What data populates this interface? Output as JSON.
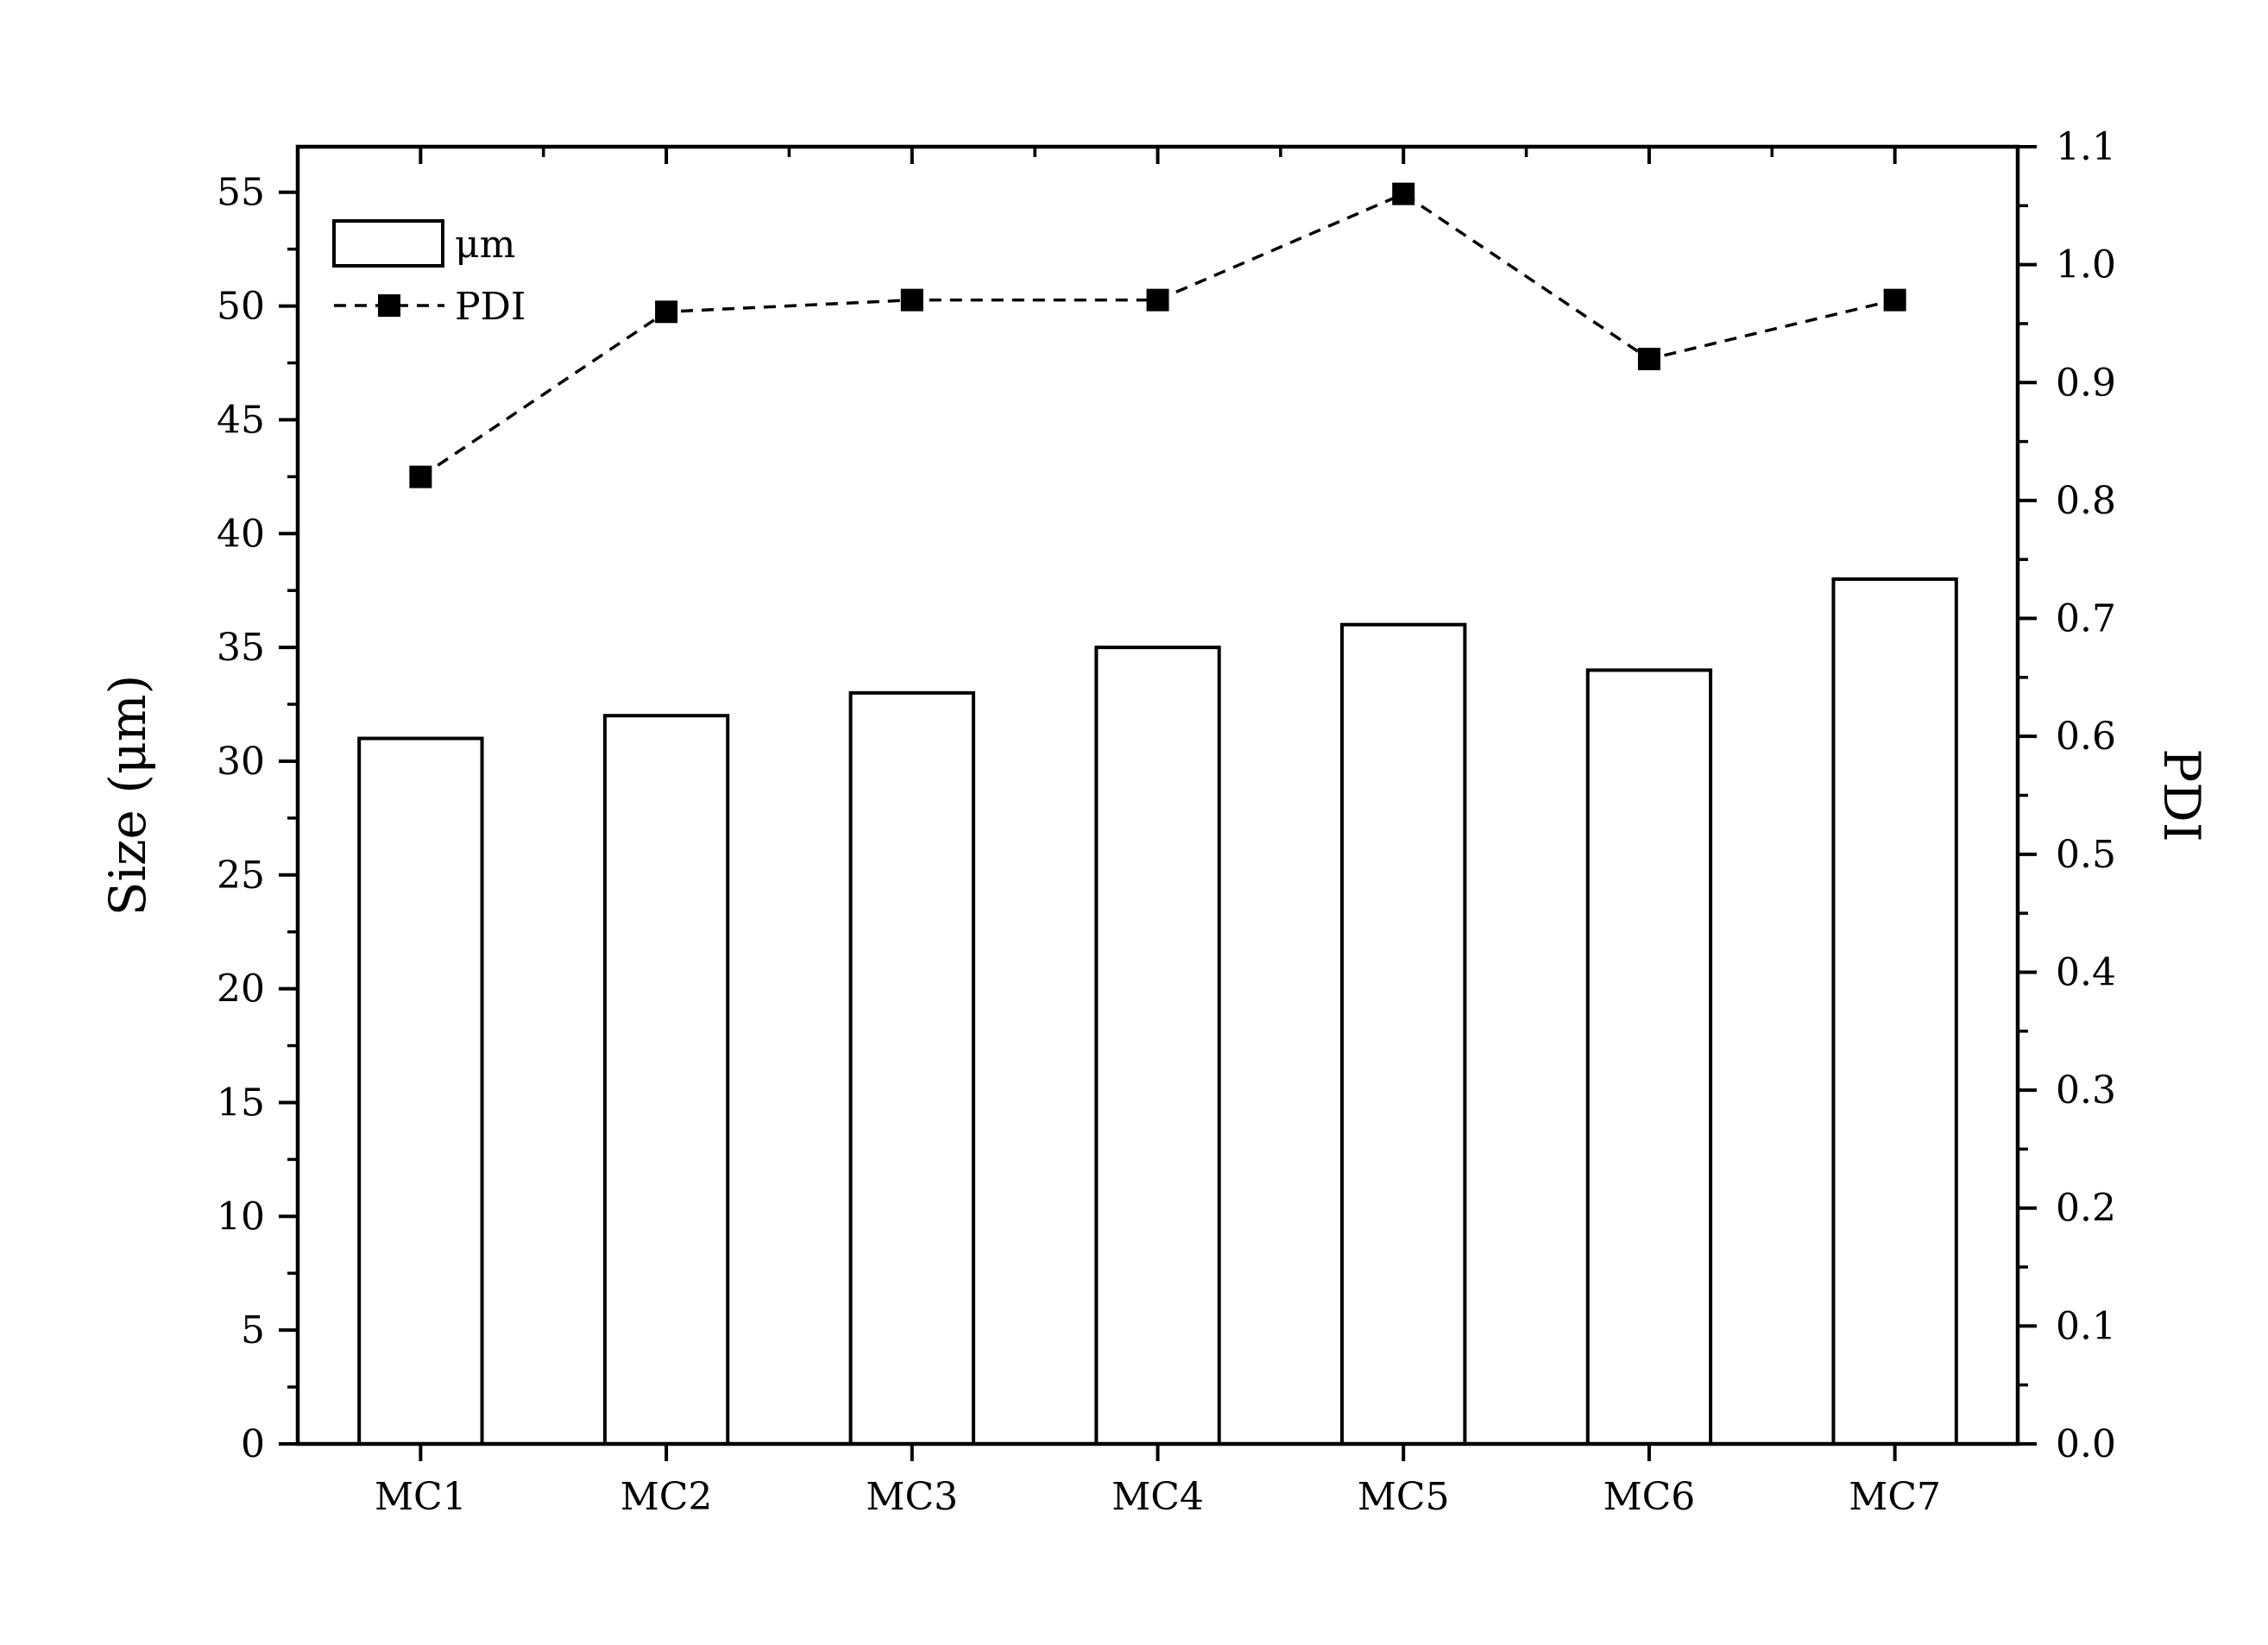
{
  "chart_data": {
    "type": "bar",
    "categories": [
      "MC1",
      "MC2",
      "MC3",
      "MC4",
      "MC5",
      "MC6",
      "MC7"
    ],
    "series": [
      {
        "name": "μm",
        "type": "bar",
        "axis": "left",
        "values": [
          31,
          32,
          33,
          35,
          36,
          34,
          38
        ]
      },
      {
        "name": "PDI",
        "type": "line",
        "axis": "right",
        "line_style": "dashed",
        "marker": "square",
        "values": [
          0.82,
          0.96,
          0.97,
          0.97,
          1.06,
          0.92,
          0.97
        ]
      }
    ],
    "ylabel": "Size (μm)",
    "y2label": "PDI",
    "ylim": [
      0,
      57
    ],
    "y2lim": [
      0,
      1.1
    ],
    "yticks": [
      "0",
      "5",
      "10",
      "15",
      "20",
      "25",
      "30",
      "35",
      "40",
      "45",
      "50",
      "55"
    ],
    "y2ticks": [
      "0.0",
      "0.1",
      "0.2",
      "0.3",
      "0.4",
      "0.5",
      "0.6",
      "0.7",
      "0.8",
      "0.9",
      "1.0",
      "1.1"
    ],
    "legend_position": "top-left",
    "grid": false,
    "colors": {
      "bar_fill": "#ffffff",
      "stroke": "#000000"
    }
  }
}
